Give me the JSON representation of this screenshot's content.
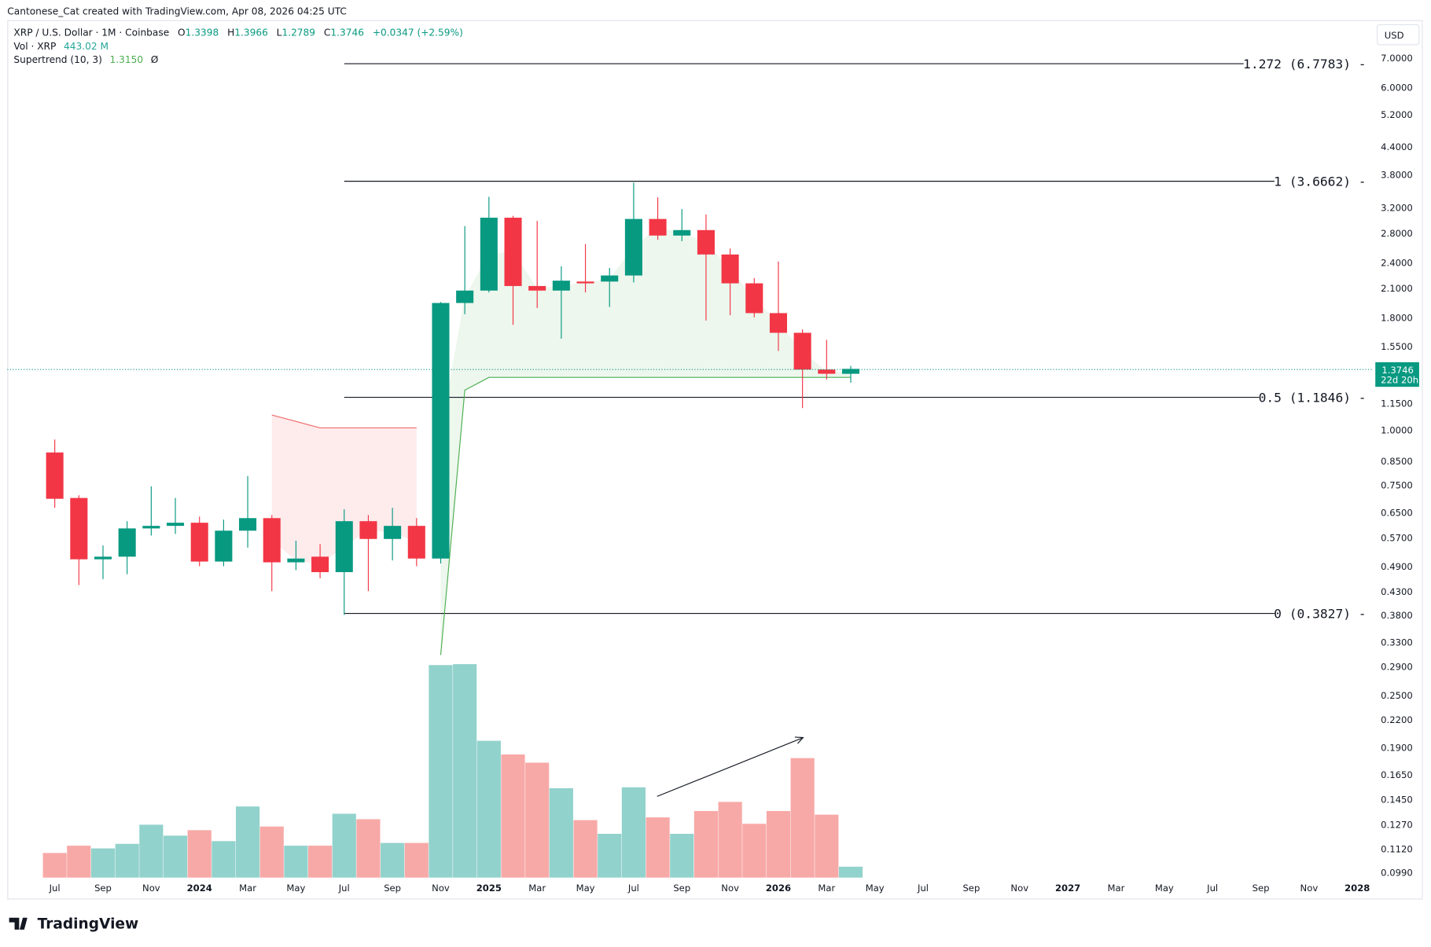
{
  "credit": "Cantonese_Cat created with TradingView.com, Apr 08, 2026 04:25 UTC",
  "legend": {
    "symbol": "XRP / U.S. Dollar · 1M · Coinbase",
    "o_label": "O",
    "o": "1.3398",
    "h_label": "H",
    "h": "1.3966",
    "l_label": "L",
    "l": "1.2789",
    "c_label": "C",
    "c": "1.3746",
    "change": "+0.0347 (+2.59%)",
    "vol_label": "Vol · XRP",
    "vol": "443.02 M",
    "st_label": "Supertrend (10, 3)",
    "st_value": "1.3150",
    "st_extra": "Ø"
  },
  "currency_button": "USD",
  "last_price": {
    "price": "1.3746",
    "countdown": "22d 20h"
  },
  "logo": "TradingView",
  "colors": {
    "up": "#089981",
    "down": "#f23645",
    "up_vol": "#92d2cc",
    "down_vol": "#f7a9a7",
    "st_up": "#4caf50",
    "st_down": "#f06c6c"
  },
  "chart_data": {
    "type": "candlestick",
    "title": "XRP / U.S. Dollar · 1M · Coinbase",
    "yscale": "log",
    "ylim": [
      0.099,
      7.0
    ],
    "y_ticks": [
      "7.0000",
      "6.0000",
      "5.2000",
      "4.4000",
      "3.8000",
      "3.2000",
      "2.8000",
      "2.4000",
      "2.1000",
      "1.8000",
      "1.5500",
      "1.1500",
      "1.0000",
      "0.8500",
      "0.7500",
      "0.6500",
      "0.5700",
      "0.4900",
      "0.4300",
      "0.3800",
      "0.3300",
      "0.2900",
      "0.2500",
      "0.2200",
      "0.1900",
      "0.1650",
      "0.1450",
      "0.1270",
      "0.1120",
      "0.0990"
    ],
    "x_ticks": [
      {
        "label": "Jul",
        "year": false
      },
      {
        "label": "Sep",
        "year": false
      },
      {
        "label": "Nov",
        "year": false
      },
      {
        "label": "2024",
        "year": true
      },
      {
        "label": "Mar",
        "year": false
      },
      {
        "label": "May",
        "year": false
      },
      {
        "label": "Jul",
        "year": false
      },
      {
        "label": "Sep",
        "year": false
      },
      {
        "label": "Nov",
        "year": false
      },
      {
        "label": "2025",
        "year": true
      },
      {
        "label": "Mar",
        "year": false
      },
      {
        "label": "May",
        "year": false
      },
      {
        "label": "Jul",
        "year": false
      },
      {
        "label": "Sep",
        "year": false
      },
      {
        "label": "Nov",
        "year": false
      },
      {
        "label": "2026",
        "year": true
      },
      {
        "label": "Mar",
        "year": false
      },
      {
        "label": "May",
        "year": false
      },
      {
        "label": "Jul",
        "year": false
      },
      {
        "label": "Sep",
        "year": false
      },
      {
        "label": "Nov",
        "year": false
      },
      {
        "label": "2027",
        "year": true
      },
      {
        "label": "Mar",
        "year": false
      },
      {
        "label": "May",
        "year": false
      },
      {
        "label": "Jul",
        "year": false
      },
      {
        "label": "Sep",
        "year": false
      },
      {
        "label": "Nov",
        "year": false
      },
      {
        "label": "2028",
        "year": true
      }
    ],
    "candles": [
      {
        "t": "2023-07",
        "o": 0.888,
        "h": 0.95,
        "l": 0.665,
        "c": 0.697,
        "v": 999
      },
      {
        "t": "2023-08",
        "o": 0.7,
        "h": 0.71,
        "l": 0.444,
        "c": 0.508,
        "v": 1295
      },
      {
        "t": "2023-09",
        "o": 0.508,
        "h": 0.546,
        "l": 0.458,
        "c": 0.515,
        "v": 1184
      },
      {
        "t": "2023-10",
        "o": 0.515,
        "h": 0.62,
        "l": 0.47,
        "c": 0.597,
        "v": 1369
      },
      {
        "t": "2023-11",
        "o": 0.597,
        "h": 0.744,
        "l": 0.575,
        "c": 0.605,
        "v": 2146
      },
      {
        "t": "2023-12",
        "o": 0.605,
        "h": 0.7,
        "l": 0.58,
        "c": 0.615,
        "v": 1702
      },
      {
        "t": "2024-01",
        "o": 0.615,
        "h": 0.635,
        "l": 0.49,
        "c": 0.502,
        "v": 1924
      },
      {
        "t": "2024-02",
        "o": 0.502,
        "h": 0.625,
        "l": 0.49,
        "c": 0.59,
        "v": 1480
      },
      {
        "t": "2024-03",
        "o": 0.59,
        "h": 0.785,
        "l": 0.54,
        "c": 0.63,
        "v": 2886
      },
      {
        "t": "2024-04",
        "o": 0.63,
        "h": 0.64,
        "l": 0.43,
        "c": 0.5,
        "v": 2072
      },
      {
        "t": "2024-05",
        "o": 0.5,
        "h": 0.56,
        "l": 0.48,
        "c": 0.51,
        "v": 1295
      },
      {
        "t": "2024-06",
        "o": 0.515,
        "h": 0.55,
        "l": 0.46,
        "c": 0.475,
        "v": 1295
      },
      {
        "t": "2024-07",
        "o": 0.475,
        "h": 0.66,
        "l": 0.38,
        "c": 0.62,
        "v": 2590
      },
      {
        "t": "2024-08",
        "o": 0.62,
        "h": 0.64,
        "l": 0.43,
        "c": 0.565,
        "v": 2368
      },
      {
        "t": "2024-09",
        "o": 0.565,
        "h": 0.665,
        "l": 0.505,
        "c": 0.605,
        "v": 1406
      },
      {
        "t": "2024-10",
        "o": 0.605,
        "h": 0.63,
        "l": 0.49,
        "c": 0.51,
        "v": 1406
      },
      {
        "t": "2024-11",
        "o": 0.51,
        "h": 1.95,
        "l": 0.497,
        "c": 1.94,
        "v": 8621
      },
      {
        "t": "2024-12",
        "o": 1.94,
        "h": 2.9,
        "l": 1.83,
        "c": 2.07,
        "v": 8658
      },
      {
        "t": "2025-01",
        "o": 2.07,
        "h": 3.38,
        "l": 2.05,
        "c": 3.03,
        "v": 5550
      },
      {
        "t": "2025-02",
        "o": 3.03,
        "h": 3.06,
        "l": 1.73,
        "c": 2.12,
        "v": 4995
      },
      {
        "t": "2025-03",
        "o": 2.12,
        "h": 2.98,
        "l": 1.89,
        "c": 2.07,
        "v": 4662
      },
      {
        "t": "2025-04",
        "o": 2.07,
        "h": 2.35,
        "l": 1.61,
        "c": 2.18,
        "v": 3626
      },
      {
        "t": "2025-05",
        "o": 2.17,
        "h": 2.64,
        "l": 2.05,
        "c": 2.15,
        "v": 2331
      },
      {
        "t": "2025-06",
        "o": 2.17,
        "h": 2.33,
        "l": 1.9,
        "c": 2.24,
        "v": 1776
      },
      {
        "t": "2025-07",
        "o": 2.24,
        "h": 3.64,
        "l": 2.16,
        "c": 3.01,
        "v": 3663
      },
      {
        "t": "2025-08",
        "o": 3.01,
        "h": 3.37,
        "l": 2.7,
        "c": 2.76,
        "v": 2442
      },
      {
        "t": "2025-09",
        "o": 2.76,
        "h": 3.17,
        "l": 2.68,
        "c": 2.84,
        "v": 1776
      },
      {
        "t": "2025-10",
        "o": 2.84,
        "h": 3.08,
        "l": 1.77,
        "c": 2.5,
        "v": 2701
      },
      {
        "t": "2025-11",
        "o": 2.5,
        "h": 2.58,
        "l": 1.82,
        "c": 2.15,
        "v": 3071
      },
      {
        "t": "2025-12",
        "o": 2.15,
        "h": 2.21,
        "l": 1.8,
        "c": 1.84,
        "v": 2183
      },
      {
        "t": "2026-01",
        "o": 1.84,
        "h": 2.41,
        "l": 1.51,
        "c": 1.66,
        "v": 2701
      },
      {
        "t": "2026-02",
        "o": 1.66,
        "h": 1.69,
        "l": 1.12,
        "c": 1.37,
        "v": 4847
      },
      {
        "t": "2026-03",
        "o": 1.37,
        "h": 1.6,
        "l": 1.3,
        "c": 1.34,
        "v": 2553
      },
      {
        "t": "2026-04",
        "o": 1.3398,
        "h": 1.3966,
        "l": 1.2789,
        "c": 1.3746,
        "v": 443.02
      }
    ],
    "volume_unit": "M",
    "supertrend": {
      "down": [
        {
          "t": "2024-04",
          "v": 1.08
        },
        {
          "t": "2024-06",
          "v": 1.01
        },
        {
          "t": "2024-10",
          "v": 1.01
        }
      ],
      "up": [
        {
          "t": "2024-11",
          "v": 0.308
        },
        {
          "t": "2024-12",
          "v": 1.23
        },
        {
          "t": "2025-01",
          "v": 1.315
        },
        {
          "t": "2026-04",
          "v": 1.315
        }
      ]
    },
    "fib_levels": [
      {
        "label": "1.272 (6.7783)",
        "value": 6.7783
      },
      {
        "label": "1 (3.6662)",
        "value": 3.6662
      },
      {
        "label": "0.5 (1.1846)",
        "value": 1.1846
      },
      {
        "label": "0 (0.3827)",
        "value": 0.3827
      }
    ],
    "fib_start": "2024-07",
    "annotation_arrow": {
      "from": "2025-08",
      "to": "2026-02",
      "pane": "volume"
    }
  }
}
